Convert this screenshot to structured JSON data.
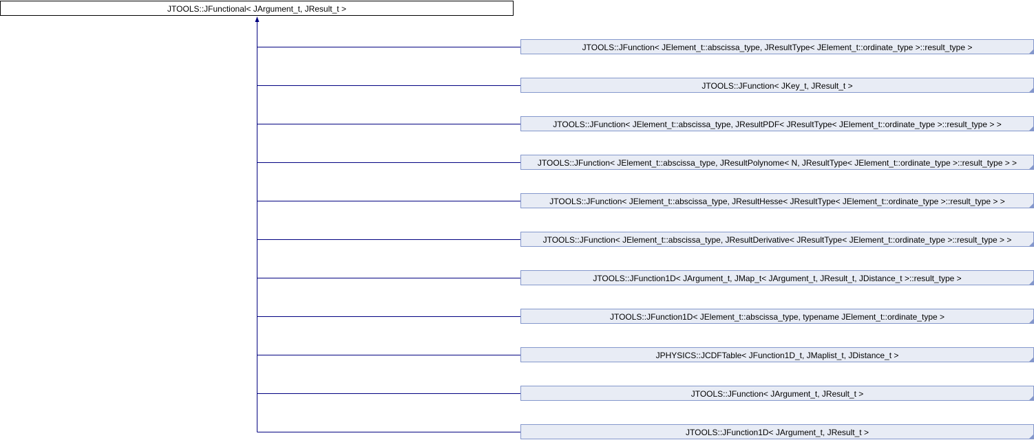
{
  "colors": {
    "edge": "#000080",
    "child_fill": "#e8ecf5",
    "child_border": "#8497cc"
  },
  "base_class": "JTOOLS::JFunctional< JArgument_t, JResult_t >",
  "derived_classes": [
    "JTOOLS::JFunction< JElement_t::abscissa_type, JResultType< JElement_t::ordinate_type >::result_type >",
    "JTOOLS::JFunction< JKey_t, JResult_t >",
    "JTOOLS::JFunction< JElement_t::abscissa_type, JResultPDF< JResultType< JElement_t::ordinate_type >::result_type > >",
    "JTOOLS::JFunction< JElement_t::abscissa_type, JResultPolynome< N, JResultType< JElement_t::ordinate_type >::result_type > >",
    "JTOOLS::JFunction< JElement_t::abscissa_type, JResultHesse< JResultType< JElement_t::ordinate_type >::result_type > >",
    "JTOOLS::JFunction< JElement_t::abscissa_type, JResultDerivative< JResultType< JElement_t::ordinate_type >::result_type > >",
    "JTOOLS::JFunction1D< JArgument_t, JMap_t< JArgument_t, JResult_t, JDistance_t >::result_type >",
    "JTOOLS::JFunction1D< JElement_t::abscissa_type, typename JElement_t::ordinate_type >",
    "JPHYSICS::JCDFTable< JFunction1D_t, JMaplist_t, JDistance_t >",
    "JTOOLS::JFunction< JArgument_t, JResult_t >",
    "JTOOLS::JFunction1D< JArgument_t, JResult_t >"
  ]
}
